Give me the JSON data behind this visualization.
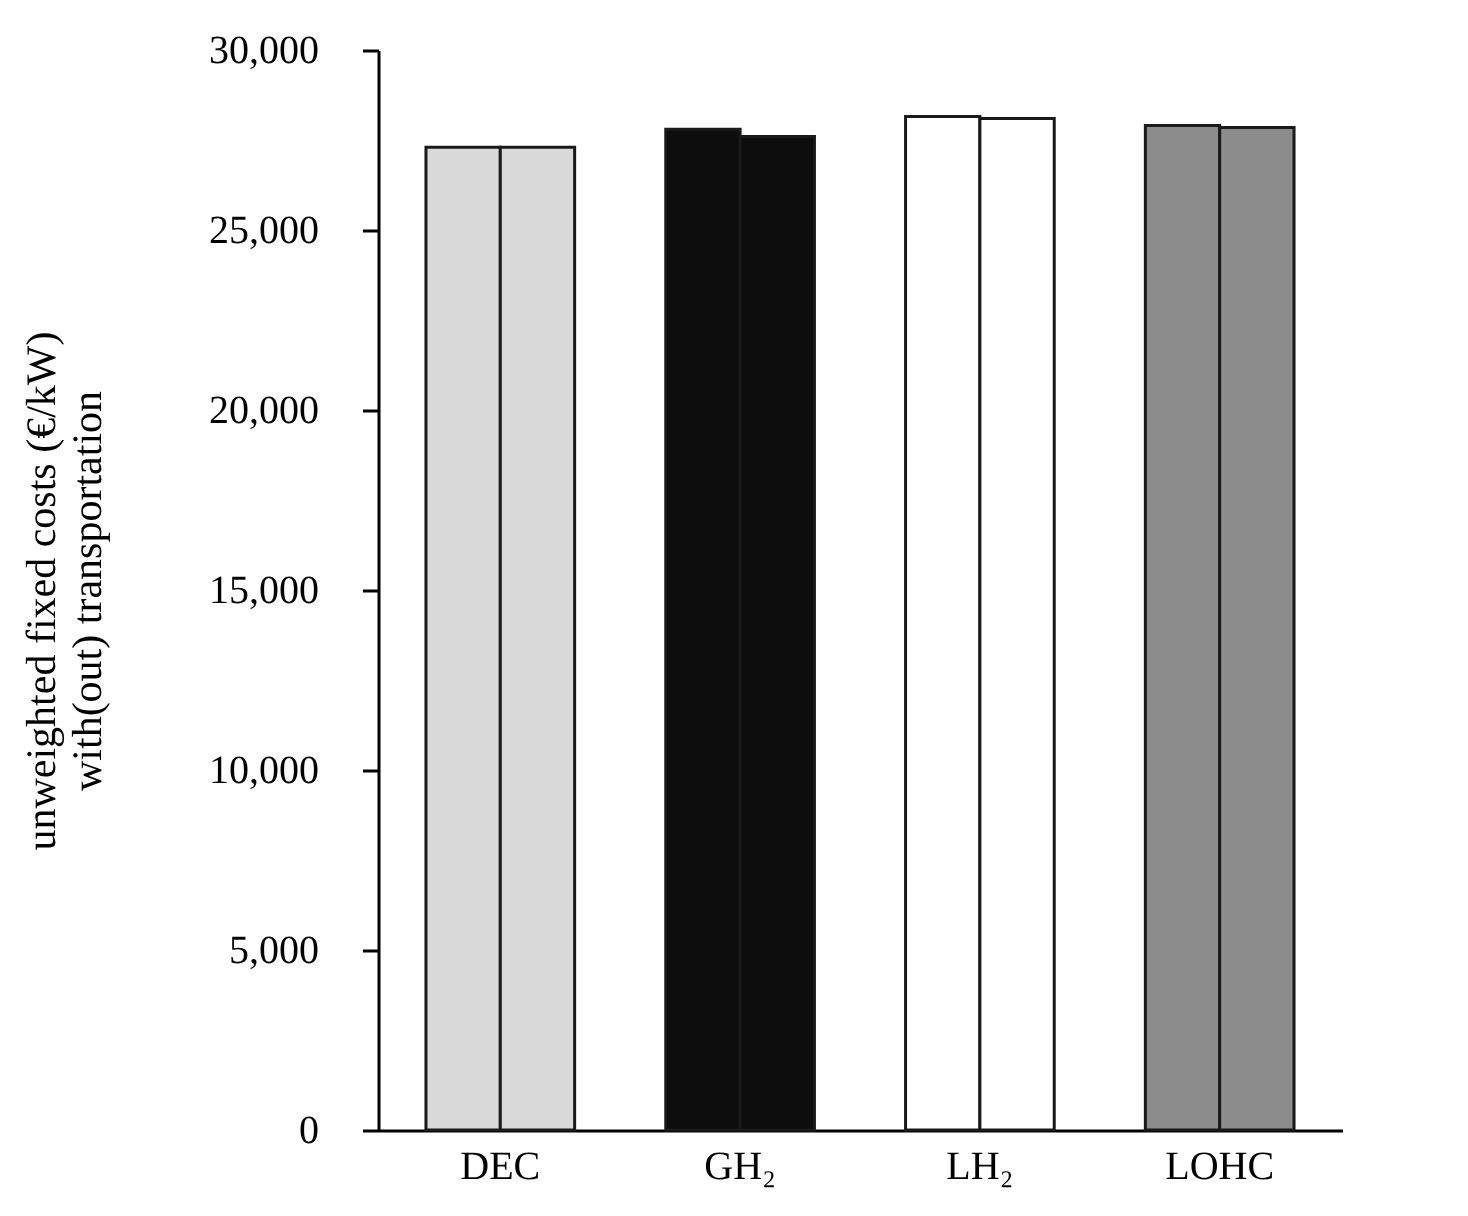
{
  "chart_data": {
    "type": "bar",
    "ylabel": "unweighted fixed costs (€/kW)\nwith(out) transportation",
    "categories": [
      "DEC",
      "GH₂",
      "LH₂",
      "LOHC"
    ],
    "series": [
      {
        "colors": [
          "#d9d9d9",
          "#0d0d0d",
          "#ffffff",
          "#8c8c8c"
        ],
        "values": [
          27300,
          27800,
          28150,
          27900
        ]
      },
      {
        "colors": [
          "#d9d9d9",
          "#0d0d0d",
          "#ffffff",
          "#8c8c8c"
        ],
        "values": [
          27300,
          27600,
          28100,
          27850
        ]
      }
    ],
    "ylim": [
      0,
      30000
    ],
    "yticks": [
      {
        "value": 0,
        "label": "0"
      },
      {
        "value": 5000,
        "label": "5,000"
      },
      {
        "value": 10000,
        "label": "10,000"
      },
      {
        "value": 15000,
        "label": "15,000"
      },
      {
        "value": 20000,
        "label": "20,000"
      },
      {
        "value": 25000,
        "label": "25,000"
      },
      {
        "value": 30000,
        "label": "30,000"
      }
    ],
    "grid": false
  }
}
